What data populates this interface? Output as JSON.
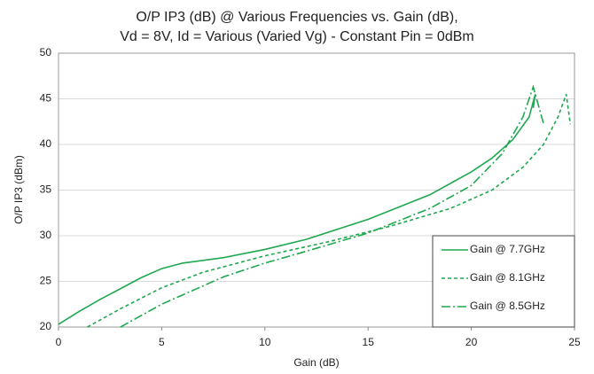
{
  "chart_data": {
    "type": "line",
    "title": [
      "O/P IP3 (dB) @ Various Frequencies vs. Gain (dB),",
      "Vd = 8V, Id = Various (Varied Vg) - Constant Pin = 0dBm"
    ],
    "x_label": "Gain (dB)",
    "y_label": "O/P IP3 (dBm)",
    "xlim": [
      0,
      25
    ],
    "xticks": [
      0,
      5,
      10,
      15,
      20,
      25
    ],
    "ylim": [
      20,
      50
    ],
    "yticks": [
      20,
      25,
      30,
      35,
      40,
      45,
      50
    ],
    "grid": true,
    "legend": "lower right",
    "series": [
      {
        "name": "Gain @ 7.7GHz",
        "color": "#1fa84f",
        "style": "solid",
        "x": [
          0,
          1,
          2,
          3,
          4,
          5,
          6,
          7,
          8,
          10,
          12,
          15,
          18,
          20,
          21,
          22,
          22.8,
          23.1,
          23.0
        ],
        "values": [
          20.3,
          21.7,
          23,
          24.2,
          25.4,
          26.4,
          27,
          27.3,
          27.6,
          28.5,
          29.6,
          31.8,
          34.5,
          37,
          38.5,
          40.5,
          43,
          45.5,
          44
        ]
      },
      {
        "name": "Gain @ 8.1GHz",
        "color": "#1fa84f",
        "style": "dashed",
        "x": [
          1.4,
          3,
          5,
          7,
          10,
          13,
          16,
          19,
          21,
          22.5,
          23.5,
          24.2,
          24.6,
          24.8
        ],
        "values": [
          20,
          22,
          24.3,
          26,
          27.8,
          29.3,
          31,
          33,
          35,
          37.5,
          40,
          43,
          45.5,
          42.2
        ]
      },
      {
        "name": "Gain @ 8.5GHz",
        "color": "#1fa84f",
        "style": "dashdot",
        "x": [
          3,
          5,
          8,
          10,
          12,
          15,
          18,
          20,
          21.5,
          22.5,
          23,
          23.5
        ],
        "values": [
          20,
          22.5,
          25.5,
          27,
          28.3,
          30.3,
          33,
          35.5,
          39,
          43,
          46.3,
          42.3
        ]
      }
    ]
  }
}
